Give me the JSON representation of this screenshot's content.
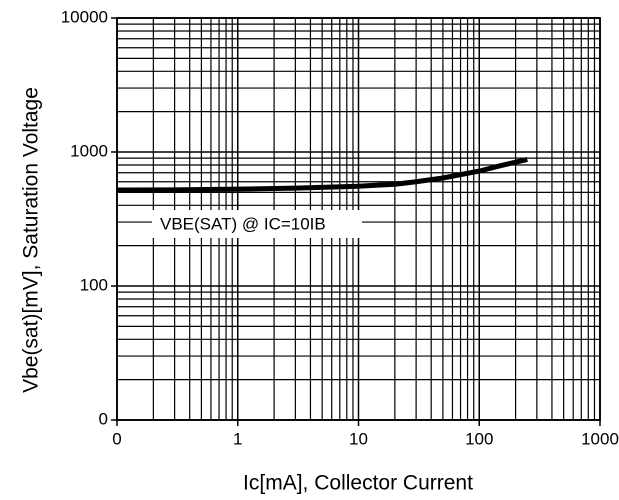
{
  "chart_data": {
    "type": "line",
    "x_label": "Ic[mA], Collector Current",
    "y_label": "Vbe(sat)[mV], Saturation Voltage",
    "xscale": "log",
    "yscale": "log",
    "grid": true,
    "minor_grid": true,
    "xlim": [
      0.1,
      1000
    ],
    "xticks": [
      {
        "value": 0.1,
        "label": "0"
      },
      1,
      10,
      100,
      1000
    ],
    "ylim": [
      10,
      10000
    ],
    "yticks": [
      {
        "value": 10,
        "label": "0"
      },
      100,
      1000,
      10000
    ],
    "series": [
      {
        "name": "VBE(SAT) @ IC=10IB",
        "color": "#000000",
        "x": [
          0.1,
          0.3,
          1,
          3,
          10,
          20,
          30,
          50,
          100,
          150,
          250
        ],
        "values": [
          520,
          522,
          528,
          538,
          555,
          575,
          600,
          640,
          720,
          790,
          880
        ]
      }
    ]
  }
}
